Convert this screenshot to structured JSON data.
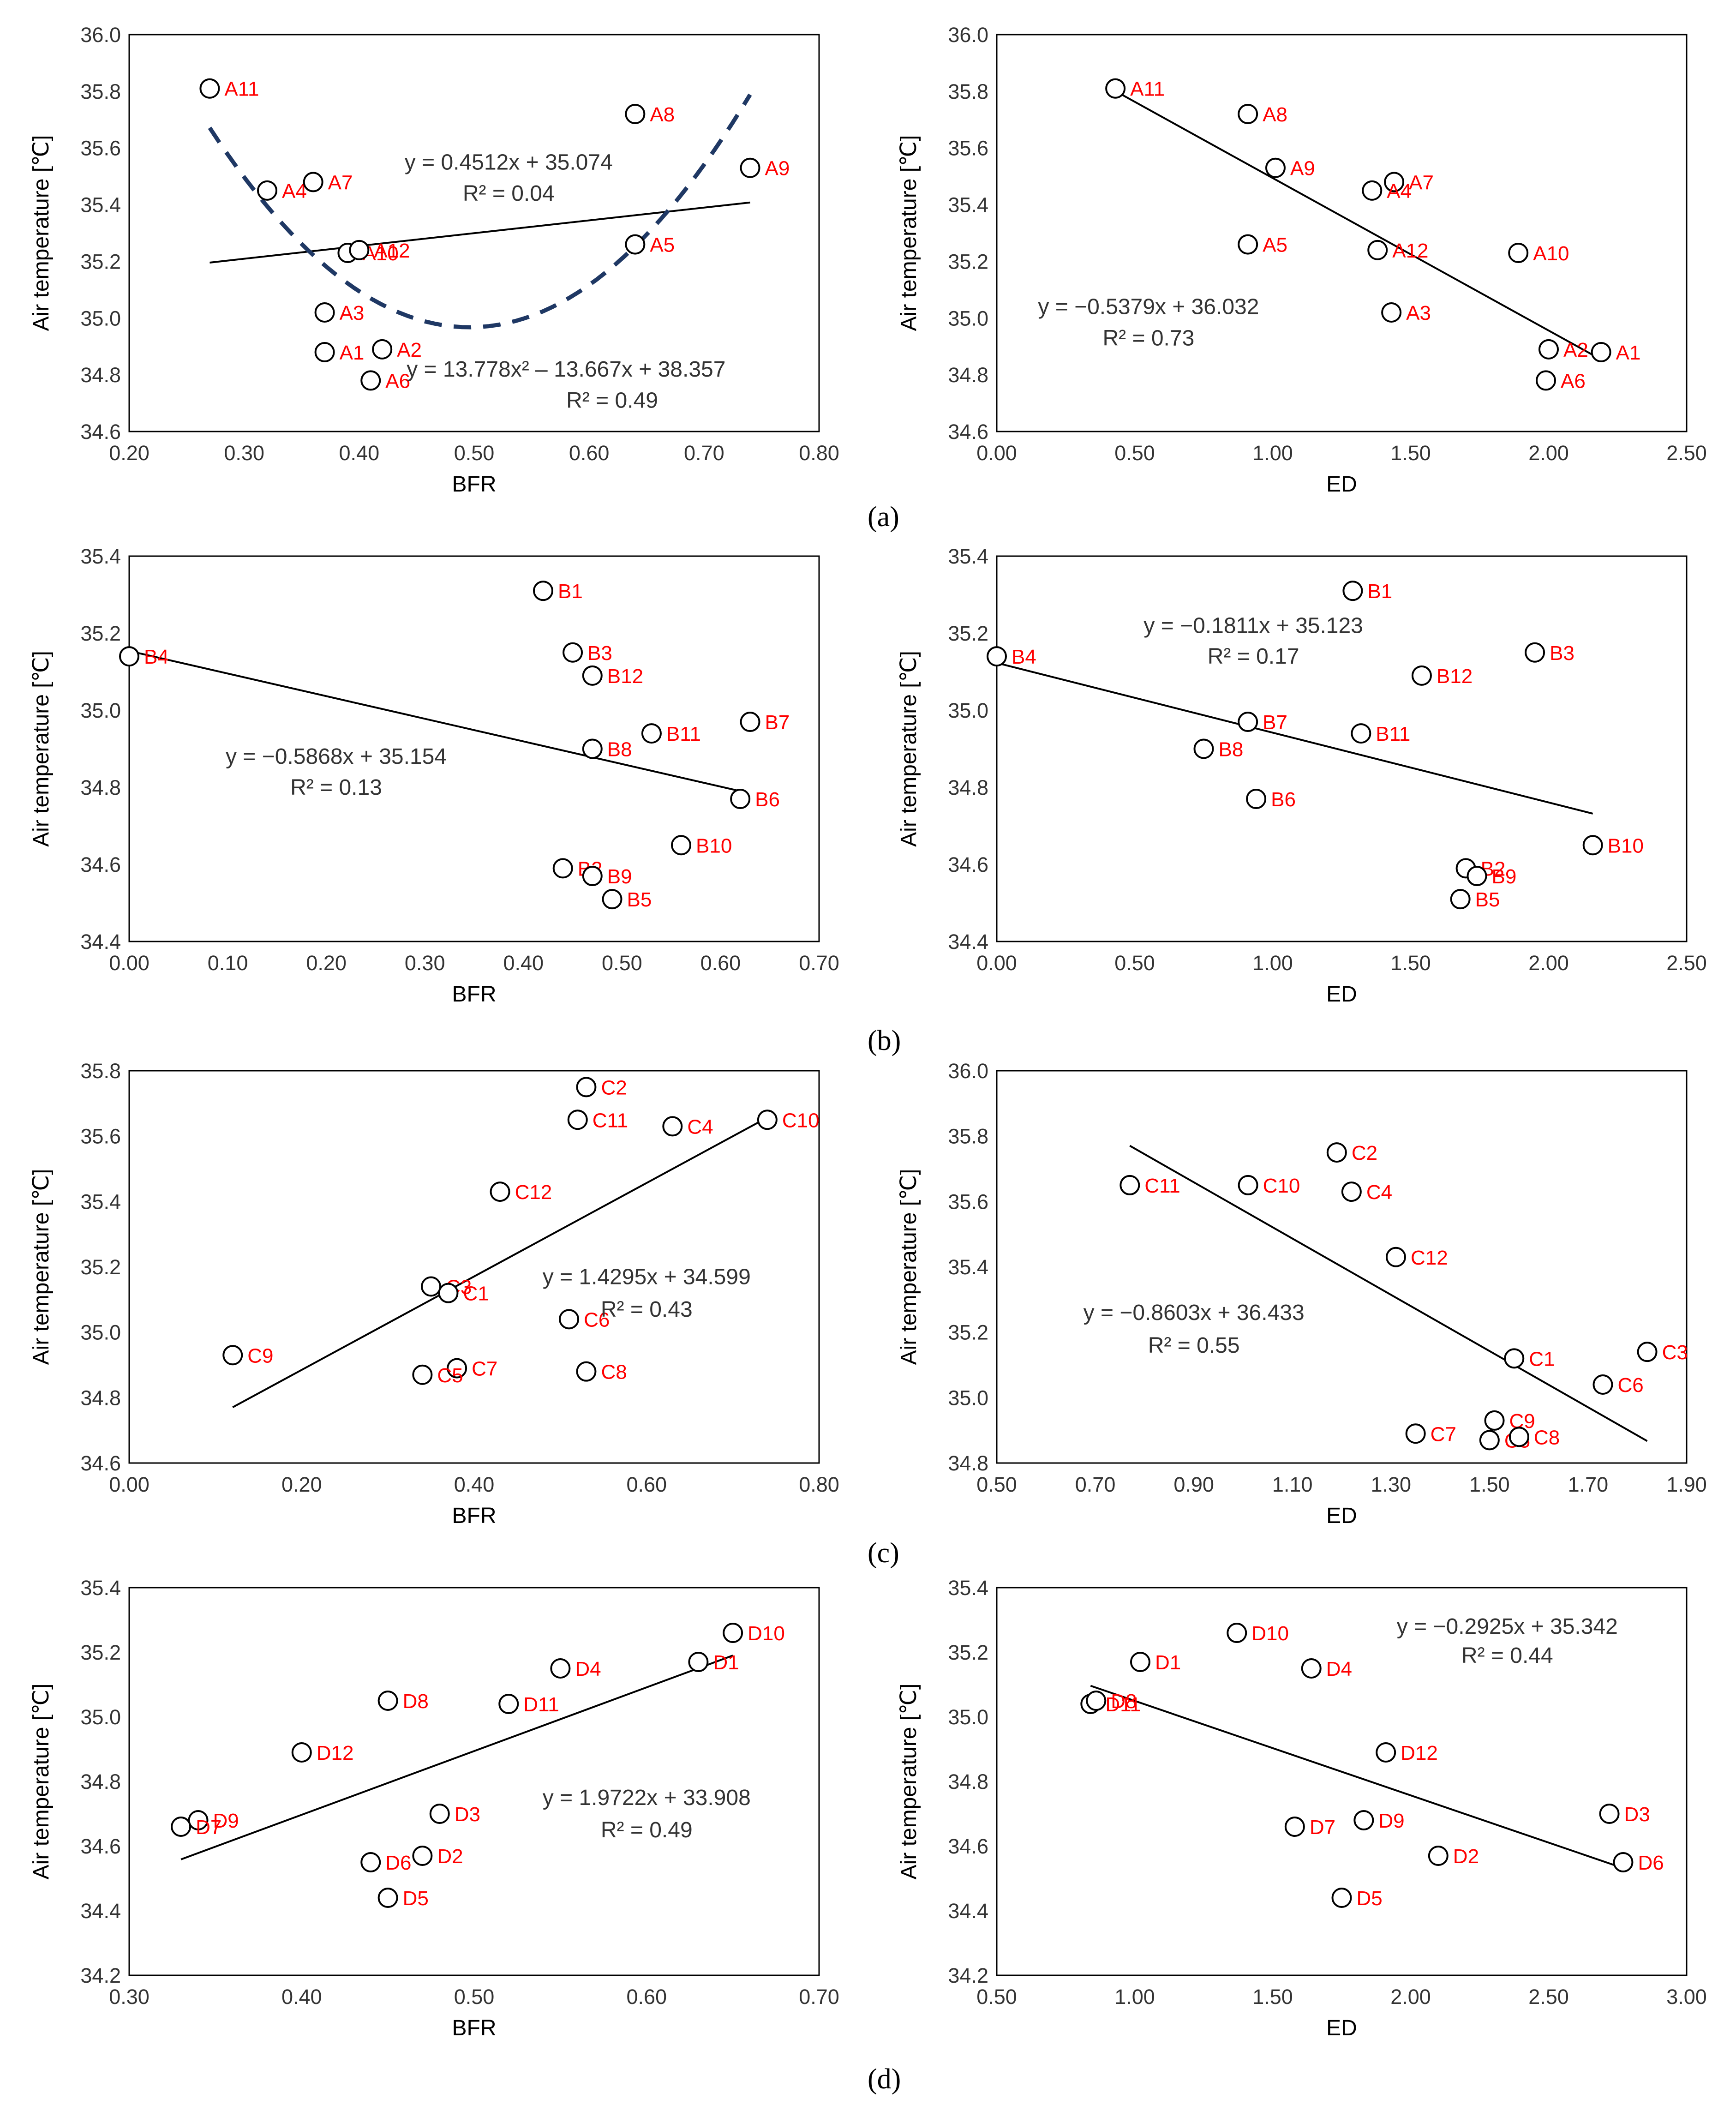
{
  "colors": {
    "label": "#ff0000",
    "marker": "#000000",
    "trend": "#000000",
    "poly": "#1f3864",
    "text": "#333333"
  },
  "panels": [
    {
      "label": "(a)"
    },
    {
      "label": "(b)"
    },
    {
      "label": "(c)"
    },
    {
      "label": "(d)"
    }
  ],
  "chart_data": [
    {
      "type": "scatter",
      "panel": "(a)",
      "xlabel": "BFR",
      "ylabel": "Air temperature [℃]",
      "xlim": [
        0.2,
        0.8
      ],
      "ylim": [
        34.6,
        36.0
      ],
      "xstep": 0.1,
      "ystep": 0.2,
      "xdec": 2,
      "ydec": 1,
      "points": [
        {
          "id": "A11",
          "x": 0.27,
          "y": 35.81
        },
        {
          "id": "A4",
          "x": 0.32,
          "y": 35.45
        },
        {
          "id": "A7",
          "x": 0.36,
          "y": 35.48
        },
        {
          "id": "A10",
          "x": 0.39,
          "y": 35.23
        },
        {
          "id": "A12",
          "x": 0.4,
          "y": 35.24
        },
        {
          "id": "A3",
          "x": 0.37,
          "y": 35.02
        },
        {
          "id": "A1",
          "x": 0.37,
          "y": 34.88
        },
        {
          "id": "A2",
          "x": 0.42,
          "y": 34.89
        },
        {
          "id": "A6",
          "x": 0.41,
          "y": 34.78
        },
        {
          "id": "A8",
          "x": 0.64,
          "y": 35.72
        },
        {
          "id": "A9",
          "x": 0.74,
          "y": 35.53
        },
        {
          "id": "A5",
          "x": 0.64,
          "y": 35.26
        }
      ],
      "trend": {
        "slope": 0.4512,
        "intercept": 35.074,
        "x_from": 0.27,
        "x_to": 0.74
      },
      "poly": {
        "a": 13.778,
        "b": -13.667,
        "c": 38.357,
        "x_from": 0.27,
        "x_to": 0.74
      },
      "annotations": [
        {
          "text": "y = 0.4512x + 35.074",
          "x": 0.53,
          "y": 35.55
        },
        {
          "text": "R² = 0.04",
          "x": 0.53,
          "y": 35.44
        },
        {
          "text": "y = 13.778x² – 13.667x + 38.357",
          "x": 0.58,
          "y": 34.82
        },
        {
          "text": "R² = 0.49",
          "x": 0.62,
          "y": 34.71
        }
      ]
    },
    {
      "type": "scatter",
      "panel": "(a)",
      "xlabel": "ED",
      "ylabel": "Air temperature [℃]",
      "xlim": [
        0.0,
        2.5
      ],
      "ylim": [
        34.6,
        36.0
      ],
      "xstep": 0.5,
      "ystep": 0.2,
      "xdec": 2,
      "ydec": 1,
      "points": [
        {
          "id": "A11",
          "x": 0.43,
          "y": 35.81
        },
        {
          "id": "A8",
          "x": 0.91,
          "y": 35.72
        },
        {
          "id": "A9",
          "x": 1.01,
          "y": 35.53
        },
        {
          "id": "A7",
          "x": 1.44,
          "y": 35.48
        },
        {
          "id": "A4",
          "x": 1.36,
          "y": 35.45
        },
        {
          "id": "A5",
          "x": 0.91,
          "y": 35.26
        },
        {
          "id": "A12",
          "x": 1.38,
          "y": 35.24
        },
        {
          "id": "A10",
          "x": 1.89,
          "y": 35.23
        },
        {
          "id": "A3",
          "x": 1.43,
          "y": 35.02
        },
        {
          "id": "A1",
          "x": 2.19,
          "y": 34.88
        },
        {
          "id": "A2",
          "x": 2.0,
          "y": 34.89
        },
        {
          "id": "A6",
          "x": 1.99,
          "y": 34.78
        }
      ],
      "trend": {
        "slope": -0.5379,
        "intercept": 36.032,
        "x_from": 0.43,
        "x_to": 2.19
      },
      "annotations": [
        {
          "text": "y = −0.5379x + 36.032",
          "x": 0.55,
          "y": 35.04
        },
        {
          "text": "R² = 0.73",
          "x": 0.55,
          "y": 34.93
        }
      ]
    },
    {
      "type": "scatter",
      "panel": "(b)",
      "xlabel": "BFR",
      "ylabel": "Air temperature [℃]",
      "xlim": [
        0.0,
        0.7
      ],
      "ylim": [
        34.4,
        35.4
      ],
      "xstep": 0.1,
      "ystep": 0.2,
      "xdec": 2,
      "ydec": 1,
      "points": [
        {
          "id": "B4",
          "x": 0.0,
          "y": 35.14
        },
        {
          "id": "B1",
          "x": 0.42,
          "y": 35.31
        },
        {
          "id": "B3",
          "x": 0.45,
          "y": 35.15
        },
        {
          "id": "B12",
          "x": 0.47,
          "y": 35.09
        },
        {
          "id": "B8",
          "x": 0.47,
          "y": 34.9
        },
        {
          "id": "B11",
          "x": 0.53,
          "y": 34.94
        },
        {
          "id": "B7",
          "x": 0.63,
          "y": 34.97
        },
        {
          "id": "B6",
          "x": 0.62,
          "y": 34.77
        },
        {
          "id": "B10",
          "x": 0.56,
          "y": 34.65
        },
        {
          "id": "B2",
          "x": 0.44,
          "y": 34.59
        },
        {
          "id": "B9",
          "x": 0.47,
          "y": 34.57
        },
        {
          "id": "B5",
          "x": 0.49,
          "y": 34.51
        }
      ],
      "trend": {
        "slope": -0.5868,
        "intercept": 35.154,
        "x_from": 0.0,
        "x_to": 0.62
      },
      "annotations": [
        {
          "text": "y = −0.5868x + 35.154",
          "x": 0.21,
          "y": 34.88
        },
        {
          "text": "R² = 0.13",
          "x": 0.21,
          "y": 34.8
        }
      ]
    },
    {
      "type": "scatter",
      "panel": "(b)",
      "xlabel": "ED",
      "ylabel": "Air temperature [℃]",
      "xlim": [
        0.0,
        2.5
      ],
      "ylim": [
        34.4,
        35.4
      ],
      "xstep": 0.5,
      "ystep": 0.2,
      "xdec": 2,
      "ydec": 1,
      "points": [
        {
          "id": "B4",
          "x": 0.0,
          "y": 35.14
        },
        {
          "id": "B1",
          "x": 1.29,
          "y": 35.31
        },
        {
          "id": "B3",
          "x": 1.95,
          "y": 35.15
        },
        {
          "id": "B12",
          "x": 1.54,
          "y": 35.09
        },
        {
          "id": "B7",
          "x": 0.91,
          "y": 34.97
        },
        {
          "id": "B11",
          "x": 1.32,
          "y": 34.94
        },
        {
          "id": "B8",
          "x": 0.75,
          "y": 34.9
        },
        {
          "id": "B6",
          "x": 0.94,
          "y": 34.77
        },
        {
          "id": "B10",
          "x": 2.16,
          "y": 34.65
        },
        {
          "id": "B2",
          "x": 1.7,
          "y": 34.59
        },
        {
          "id": "B9",
          "x": 1.74,
          "y": 34.57
        },
        {
          "id": "B5",
          "x": 1.68,
          "y": 34.51
        }
      ],
      "trend": {
        "slope": -0.1811,
        "intercept": 35.123,
        "x_from": 0.0,
        "x_to": 2.16
      },
      "annotations": [
        {
          "text": "y = −0.1811x + 35.123",
          "x": 0.93,
          "y": 35.22
        },
        {
          "text": "R² = 0.17",
          "x": 0.93,
          "y": 35.14
        }
      ]
    },
    {
      "type": "scatter",
      "panel": "(c)",
      "xlabel": "BFR",
      "ylabel": "Air temperature [℃]",
      "xlim": [
        0.0,
        0.8
      ],
      "ylim": [
        34.6,
        35.8
      ],
      "xstep": 0.2,
      "ystep": 0.2,
      "xdec": 2,
      "ydec": 1,
      "points": [
        {
          "id": "C2",
          "x": 0.53,
          "y": 35.75
        },
        {
          "id": "C11",
          "x": 0.52,
          "y": 35.65
        },
        {
          "id": "C4",
          "x": 0.63,
          "y": 35.63
        },
        {
          "id": "C10",
          "x": 0.74,
          "y": 35.65
        },
        {
          "id": "C12",
          "x": 0.43,
          "y": 35.43
        },
        {
          "id": "C3",
          "x": 0.35,
          "y": 35.14
        },
        {
          "id": "C1",
          "x": 0.37,
          "y": 35.12
        },
        {
          "id": "C6",
          "x": 0.51,
          "y": 35.04
        },
        {
          "id": "C9",
          "x": 0.12,
          "y": 34.93
        },
        {
          "id": "C7",
          "x": 0.38,
          "y": 34.89
        },
        {
          "id": "C5",
          "x": 0.34,
          "y": 34.87
        },
        {
          "id": "C8",
          "x": 0.53,
          "y": 34.88
        }
      ],
      "trend": {
        "slope": 1.4295,
        "intercept": 34.599,
        "x_from": 0.12,
        "x_to": 0.74
      },
      "annotations": [
        {
          "text": "y = 1.4295x + 34.599",
          "x": 0.6,
          "y": 35.17
        },
        {
          "text": "R² = 0.43",
          "x": 0.6,
          "y": 35.07
        }
      ]
    },
    {
      "type": "scatter",
      "panel": "(c)",
      "xlabel": "ED",
      "ylabel": "Air temperature [℃]",
      "xlim": [
        0.5,
        1.9
      ],
      "ylim": [
        34.8,
        36.0
      ],
      "xstep": 0.2,
      "ystep": 0.2,
      "xdec": 2,
      "ydec": 1,
      "points": [
        {
          "id": "C2",
          "x": 1.19,
          "y": 35.75
        },
        {
          "id": "C11",
          "x": 0.77,
          "y": 35.65
        },
        {
          "id": "C10",
          "x": 1.01,
          "y": 35.65
        },
        {
          "id": "C4",
          "x": 1.22,
          "y": 35.63
        },
        {
          "id": "C12",
          "x": 1.31,
          "y": 35.43
        },
        {
          "id": "C1",
          "x": 1.55,
          "y": 35.12
        },
        {
          "id": "C3",
          "x": 1.82,
          "y": 35.14
        },
        {
          "id": "C6",
          "x": 1.73,
          "y": 35.04
        },
        {
          "id": "C9",
          "x": 1.51,
          "y": 34.93
        },
        {
          "id": "C7",
          "x": 1.35,
          "y": 34.89
        },
        {
          "id": "C5",
          "x": 1.5,
          "y": 34.87
        },
        {
          "id": "C8",
          "x": 1.56,
          "y": 34.88
        }
      ],
      "trend": {
        "slope": -0.8603,
        "intercept": 36.433,
        "x_from": 0.77,
        "x_to": 1.82
      },
      "annotations": [
        {
          "text": "y = −0.8603x + 36.433",
          "x": 0.9,
          "y": 35.26
        },
        {
          "text": "R² = 0.55",
          "x": 0.9,
          "y": 35.16
        }
      ]
    },
    {
      "type": "scatter",
      "panel": "(d)",
      "xlabel": "BFR",
      "ylabel": "Air temperature [℃]",
      "xlim": [
        0.3,
        0.7
      ],
      "ylim": [
        34.2,
        35.4
      ],
      "xstep": 0.1,
      "ystep": 0.2,
      "xdec": 2,
      "ydec": 1,
      "points": [
        {
          "id": "D10",
          "x": 0.65,
          "y": 35.26
        },
        {
          "id": "D1",
          "x": 0.63,
          "y": 35.17
        },
        {
          "id": "D4",
          "x": 0.55,
          "y": 35.15
        },
        {
          "id": "D11",
          "x": 0.52,
          "y": 35.04
        },
        {
          "id": "D8",
          "x": 0.45,
          "y": 35.05
        },
        {
          "id": "D12",
          "x": 0.4,
          "y": 34.89
        },
        {
          "id": "D9",
          "x": 0.34,
          "y": 34.68
        },
        {
          "id": "D7",
          "x": 0.33,
          "y": 34.66
        },
        {
          "id": "D3",
          "x": 0.48,
          "y": 34.7
        },
        {
          "id": "D2",
          "x": 0.47,
          "y": 34.57
        },
        {
          "id": "D6",
          "x": 0.44,
          "y": 34.55
        },
        {
          "id": "D5",
          "x": 0.45,
          "y": 34.44
        }
      ],
      "trend": {
        "slope": 1.9722,
        "intercept": 33.908,
        "x_from": 0.33,
        "x_to": 0.65
      },
      "annotations": [
        {
          "text": "y = 1.9722x + 33.908",
          "x": 0.6,
          "y": 34.75
        },
        {
          "text": "R² = 0.49",
          "x": 0.6,
          "y": 34.65
        }
      ]
    },
    {
      "type": "scatter",
      "panel": "(d)",
      "xlabel": "ED",
      "ylabel": "Air temperature [℃]",
      "xlim": [
        0.5,
        3.0
      ],
      "ylim": [
        34.2,
        35.4
      ],
      "xstep": 0.5,
      "ystep": 0.2,
      "xdec": 2,
      "ydec": 1,
      "points": [
        {
          "id": "D10",
          "x": 1.37,
          "y": 35.26
        },
        {
          "id": "D1",
          "x": 1.02,
          "y": 35.17
        },
        {
          "id": "D4",
          "x": 1.64,
          "y": 35.15
        },
        {
          "id": "D11",
          "x": 0.84,
          "y": 35.04
        },
        {
          "id": "D8",
          "x": 0.86,
          "y": 35.05
        },
        {
          "id": "D12",
          "x": 1.91,
          "y": 34.89
        },
        {
          "id": "D3",
          "x": 2.72,
          "y": 34.7
        },
        {
          "id": "D9",
          "x": 1.83,
          "y": 34.68
        },
        {
          "id": "D7",
          "x": 1.58,
          "y": 34.66
        },
        {
          "id": "D2",
          "x": 2.1,
          "y": 34.57
        },
        {
          "id": "D6",
          "x": 2.77,
          "y": 34.55
        },
        {
          "id": "D5",
          "x": 1.75,
          "y": 34.44
        }
      ],
      "trend": {
        "slope": -0.2925,
        "intercept": 35.342,
        "x_from": 0.84,
        "x_to": 2.77
      },
      "annotations": [
        {
          "text": "y = −0.2925x + 35.342",
          "x": 2.35,
          "y": 35.28
        },
        {
          "text": "R² = 0.44",
          "x": 2.35,
          "y": 35.19
        }
      ]
    }
  ]
}
